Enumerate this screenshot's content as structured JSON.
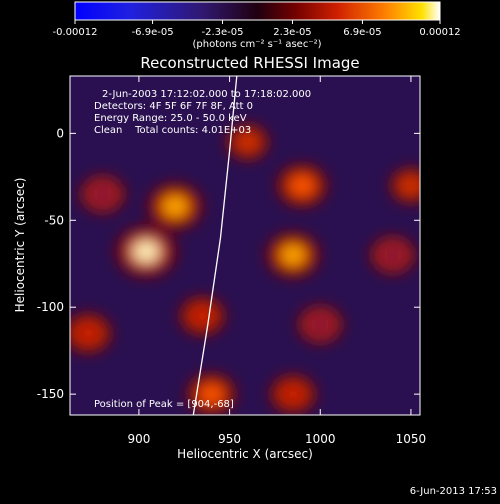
{
  "chart_data": {
    "type": "heatmap",
    "title": "Reconstructed RHESSI Image",
    "xlabel": "Heliocentric X (arcsec)",
    "ylabel": "Heliocentric Y (arcsec)",
    "xlim": [
      862,
      1055
    ],
    "ylim": [
      -162,
      33
    ],
    "x_ticks": [
      900,
      950,
      1000,
      1050
    ],
    "y_ticks": [
      0,
      -50,
      -100,
      -150
    ],
    "colorbar": {
      "label": "(photons cm⁻² s⁻¹ asec⁻²)",
      "tick_labels": [
        "-0.00012",
        "-6.9e-05",
        "-2.3e-05",
        "2.3e-05",
        "6.9e-05",
        "0.00012"
      ],
      "tick_values": [
        -0.00012,
        -6.9e-05,
        -2.3e-05,
        2.3e-05,
        6.9e-05,
        0.00012
      ],
      "range": [
        -0.00012,
        0.00012
      ]
    },
    "annotations": {
      "time_range": "2-Jun-2003 17:12:02.000 to 17:18:02.000",
      "detectors": "Detectors: 4F 5F 6F 7F 8F, Att 0",
      "energy_range": "Energy Range: 25.0 - 50.0 keV",
      "clean_counts": "Clean    Total counts: 4.01E+03",
      "peak": "Position of Peak = [904,-68]"
    },
    "sources": [
      {
        "x": 904,
        "y": -68,
        "level": 1.0
      },
      {
        "x": 920,
        "y": -42,
        "level": 0.8
      },
      {
        "x": 985,
        "y": -70,
        "level": 0.75
      },
      {
        "x": 990,
        "y": -30,
        "level": 0.65
      },
      {
        "x": 872,
        "y": -115,
        "level": 0.55
      },
      {
        "x": 935,
        "y": -105,
        "level": 0.5
      },
      {
        "x": 940,
        "y": -150,
        "level": 0.6
      },
      {
        "x": 1000,
        "y": -110,
        "level": 0.45
      },
      {
        "x": 1040,
        "y": -70,
        "level": 0.45
      },
      {
        "x": 1050,
        "y": -30,
        "level": 0.35
      },
      {
        "x": 960,
        "y": -5,
        "level": 0.35
      },
      {
        "x": 880,
        "y": -35,
        "level": 0.45
      },
      {
        "x": 985,
        "y": -150,
        "level": 0.5
      }
    ],
    "limb_curve": [
      [
        954,
        33
      ],
      [
        950,
        -10
      ],
      [
        945,
        -60
      ],
      [
        938,
        -110
      ],
      [
        930,
        -162
      ]
    ]
  },
  "footer": {
    "date": "6-Jun-2013 17:53"
  }
}
